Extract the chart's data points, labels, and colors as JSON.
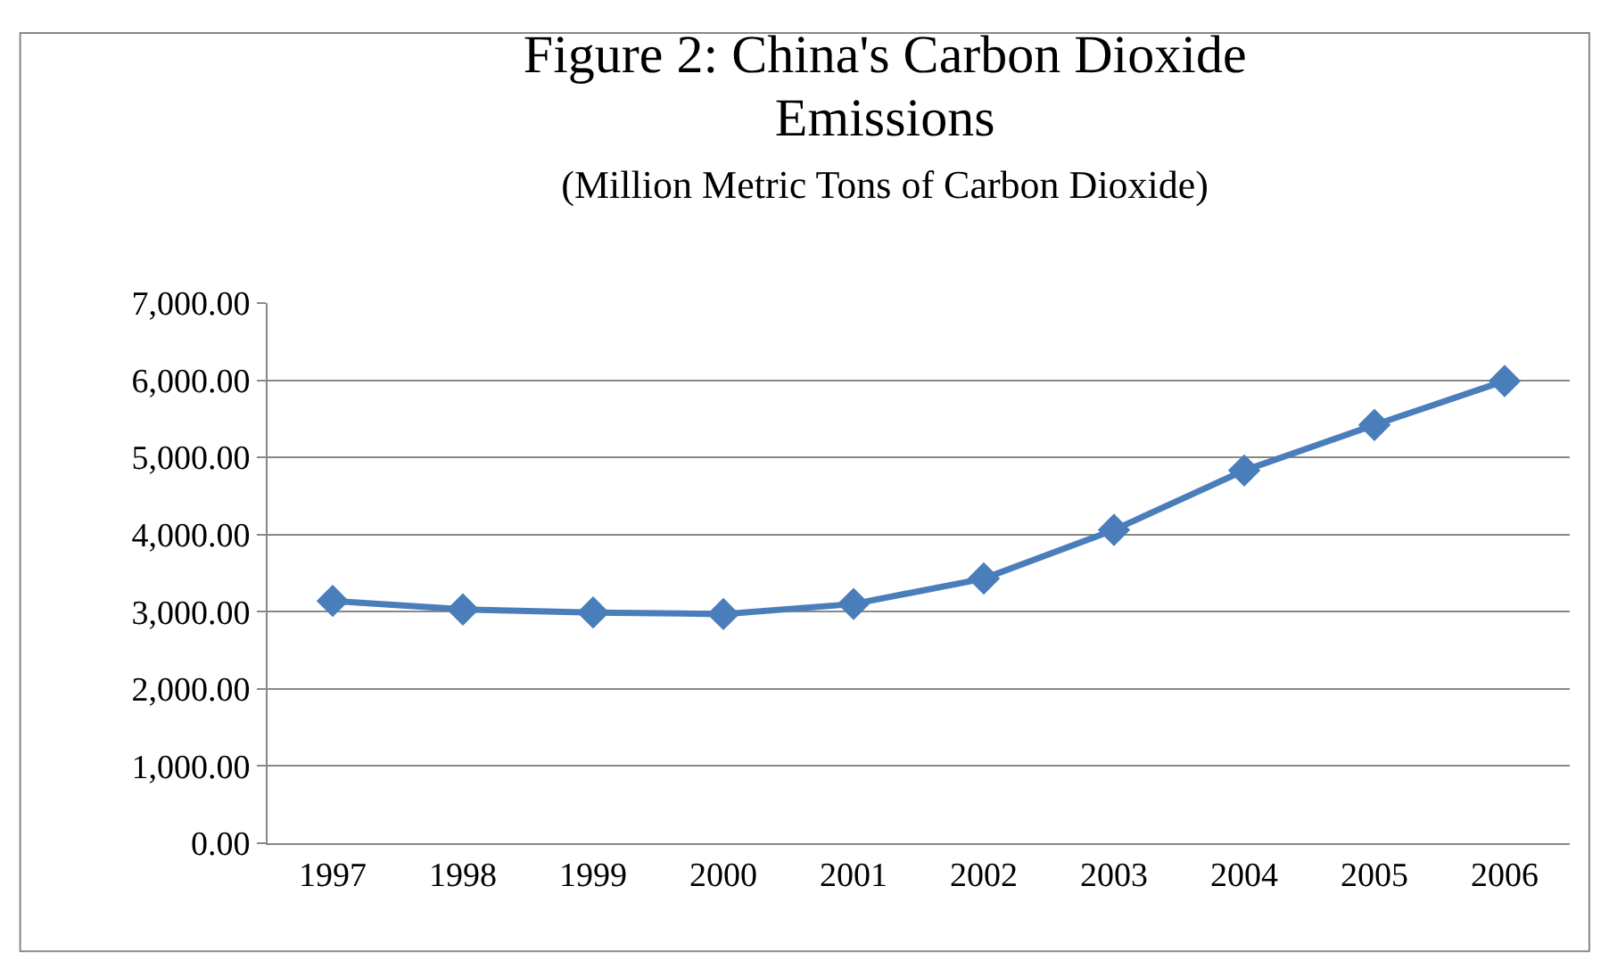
{
  "chart_data": {
    "type": "line",
    "title": "Figure 2: China's Carbon Dioxide Emissions",
    "subtitle": "(Million Metric Tons of Carbon Dioxide)",
    "categories": [
      "1997",
      "1998",
      "1999",
      "2000",
      "2001",
      "2002",
      "2003",
      "2004",
      "2005",
      "2006"
    ],
    "series": [
      {
        "color": "#4a7ebb",
        "values": [
          3140,
          3030,
          2990,
          2970,
          3100,
          3430,
          4060,
          4830,
          5420,
          5990
        ]
      }
    ],
    "ylim": [
      0,
      7000
    ],
    "yticks": [
      {
        "value": 0,
        "label": "0.00"
      },
      {
        "value": 1000,
        "label": "1,000.00"
      },
      {
        "value": 2000,
        "label": "2,000.00"
      },
      {
        "value": 3000,
        "label": "3,000.00"
      },
      {
        "value": 4000,
        "label": "4,000.00"
      },
      {
        "value": 5000,
        "label": "5,000.00"
      },
      {
        "value": 6000,
        "label": "6,000.00"
      },
      {
        "value": 7000,
        "label": "7,000.00"
      }
    ],
    "grid": "y",
    "marker": "diamond",
    "line_style": "solid"
  }
}
